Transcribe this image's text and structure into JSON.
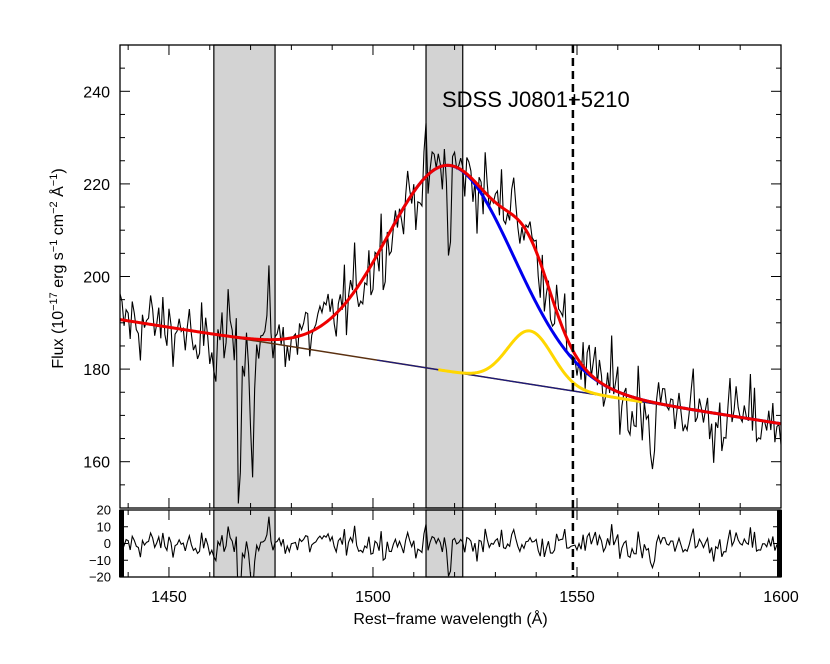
{
  "chart_data": {
    "type": "line",
    "annotation": "SDSS J0801+5210",
    "xlabel": "Rest−frame wavelength (Å)",
    "ylabel": "Flux (10",
    "ylabel_exp1": "−17",
    "ylabel_mid1": " erg s",
    "ylabel_exp2": "−1",
    "ylabel_mid2": " cm",
    "ylabel_exp3": "−2",
    "ylabel_mid3": " Å",
    "ylabel_exp4": "−1",
    "ylabel_end": ")",
    "xlim": [
      1438,
      1600
    ],
    "ylim": [
      150,
      250
    ],
    "residual_ylim": [
      -20,
      20
    ],
    "x_ticks": [
      1450,
      1500,
      1550,
      1600
    ],
    "x_tick_labels": [
      "1450",
      "1500",
      "1550",
      "1600"
    ],
    "y_ticks": [
      160,
      180,
      200,
      220,
      240
    ],
    "y_tick_labels": [
      "160",
      "180",
      "200",
      "220",
      "240"
    ],
    "residual_y_ticks": [
      -20,
      -10,
      0,
      10,
      20
    ],
    "residual_y_tick_labels": [
      "−20",
      "−10",
      "0",
      "10",
      "20"
    ],
    "shaded_regions": [
      [
        1461,
        1476
      ],
      [
        1513,
        1522
      ]
    ],
    "dashed_line_x": 1549,
    "continuum": {
      "x": [
        1438,
        1600
      ],
      "y": [
        190.7,
        168.2
      ]
    },
    "continuum_fit_range": [
      1438,
      1598
    ],
    "broad_gaussian": {
      "center": 1519,
      "amplitude": 44.5,
      "sigma": 15.5,
      "color": "#0000ee"
    },
    "narrow_gaussian": {
      "center": 1538.5,
      "amplitude": 11.5,
      "sigma": 5.5,
      "color": "#ffd700",
      "x_range": [
        1516,
        1566
      ]
    },
    "total_model_color": "#ee0000",
    "continuum_colors": {
      "left": "#5a3010",
      "right": "#1a1a80"
    },
    "absorption_features": [
      {
        "center": 1467.2,
        "depth": 37,
        "width": 0.35
      },
      {
        "center": 1470.5,
        "depth": 22,
        "width": 0.5
      },
      {
        "center": 1518.6,
        "depth": 24,
        "width": 0.4
      },
      {
        "center": 1568.3,
        "depth": 16,
        "width": 0.4
      },
      {
        "center": 1563.1,
        "depth": 9,
        "width": 0.4
      },
      {
        "center": 1456.8,
        "depth": 12,
        "width": 0.5
      },
      {
        "center": 1461.3,
        "depth": 10,
        "width": 0.5
      },
      {
        "center": 1583.2,
        "depth": 8,
        "width": 0.4
      }
    ],
    "emission_spikes": [
      {
        "center": 1534.2,
        "height": 12,
        "width": 0.35
      },
      {
        "center": 1474.7,
        "height": 10,
        "width": 0.35
      },
      {
        "center": 1518.4,
        "height": 8,
        "width": 0.3
      }
    ],
    "noise_sigma": 4.2,
    "data_step": 0.5
  }
}
